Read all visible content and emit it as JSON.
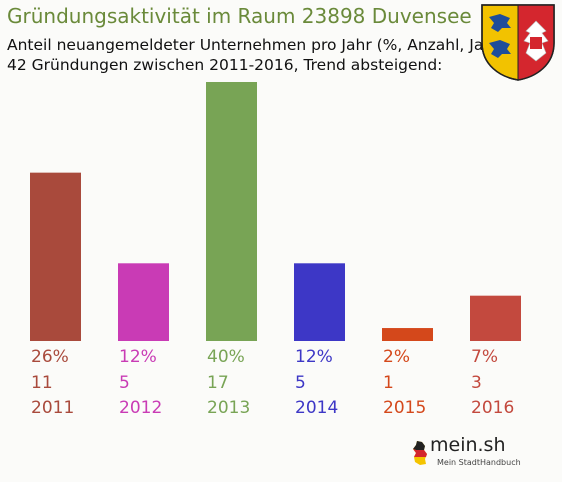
{
  "title": "Gründungsaktivität im Raum 23898 Duvensee",
  "subtitle_line1": "Anteil neuangemeldeter Unternehmen pro Jahr (%, Anzahl, Jahr)",
  "subtitle_line2": "42 Gründungen zwischen 2011-2016, Trend absteigend:",
  "logo": {
    "brand": "mein.sh",
    "tagline": "Mein StadtHandbuch"
  },
  "crest_icon": "schleswig-holstein-crest-icon",
  "chart_data": {
    "type": "bar",
    "categories": [
      "2011",
      "2012",
      "2013",
      "2014",
      "2015",
      "2016"
    ],
    "values": [
      26,
      12,
      40,
      12,
      2,
      7
    ],
    "value_labels": [
      "26%",
      "12%",
      "40%",
      "12%",
      "2%",
      "7%"
    ],
    "counts": [
      "11",
      "5",
      "17",
      "5",
      "1",
      "3"
    ],
    "colors": [
      "#a94a3c",
      "#c93bb5",
      "#78a455",
      "#3d37c6",
      "#d4481b",
      "#c3493e"
    ],
    "title": "Gründungsaktivität im Raum 23898 Duvensee",
    "xlabel": "",
    "ylabel": "",
    "ylim": [
      0,
      40
    ],
    "grid": false,
    "legend": "none"
  }
}
